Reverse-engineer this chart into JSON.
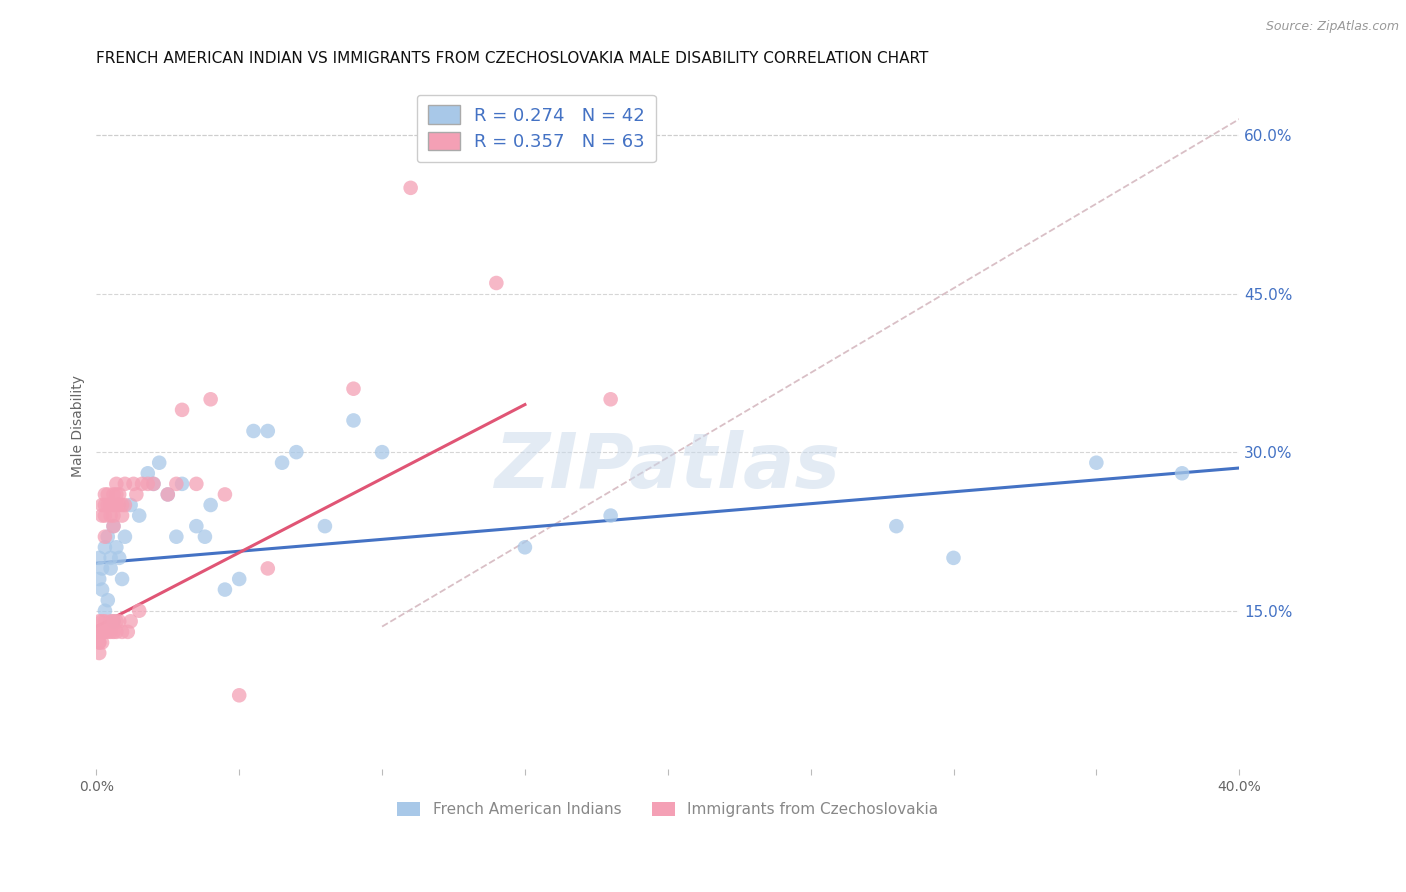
{
  "title": "FRENCH AMERICAN INDIAN VS IMMIGRANTS FROM CZECHOSLOVAKIA MALE DISABILITY CORRELATION CHART",
  "source": "Source: ZipAtlas.com",
  "ylabel": "Male Disability",
  "xlim": [
    0.0,
    0.4
  ],
  "ylim": [
    0.0,
    0.65
  ],
  "xtick_positions": [
    0.0,
    0.05,
    0.1,
    0.15,
    0.2,
    0.25,
    0.3,
    0.35,
    0.4
  ],
  "xticklabels": [
    "0.0%",
    "",
    "",
    "",
    "",
    "",
    "",
    "",
    "40.0%"
  ],
  "yticks_right": [
    0.15,
    0.3,
    0.45,
    0.6
  ],
  "ytick_labels_right": [
    "15.0%",
    "30.0%",
    "45.0%",
    "60.0%"
  ],
  "blue_color": "#a8c8e8",
  "pink_color": "#f4a0b5",
  "blue_line_color": "#4472c4",
  "pink_line_color": "#e05575",
  "dashed_line_color": "#d0b0b8",
  "legend_blue_R": "R = 0.274",
  "legend_blue_N": "N = 42",
  "legend_pink_R": "R = 0.357",
  "legend_pink_N": "N = 63",
  "legend1": "French American Indians",
  "legend2": "Immigrants from Czechoslovakia",
  "watermark": "ZIPatlas",
  "blue_scatter_x": [
    0.001,
    0.001,
    0.002,
    0.002,
    0.003,
    0.003,
    0.004,
    0.004,
    0.005,
    0.005,
    0.006,
    0.006,
    0.007,
    0.008,
    0.009,
    0.01,
    0.012,
    0.015,
    0.018,
    0.02,
    0.022,
    0.025,
    0.028,
    0.03,
    0.035,
    0.038,
    0.04,
    0.045,
    0.05,
    0.055,
    0.06,
    0.065,
    0.07,
    0.08,
    0.09,
    0.1,
    0.15,
    0.18,
    0.28,
    0.3,
    0.35,
    0.38
  ],
  "blue_scatter_y": [
    0.2,
    0.18,
    0.19,
    0.17,
    0.21,
    0.15,
    0.22,
    0.16,
    0.2,
    0.19,
    0.14,
    0.23,
    0.21,
    0.2,
    0.18,
    0.22,
    0.25,
    0.24,
    0.28,
    0.27,
    0.29,
    0.26,
    0.22,
    0.27,
    0.23,
    0.22,
    0.25,
    0.17,
    0.18,
    0.32,
    0.32,
    0.29,
    0.3,
    0.23,
    0.33,
    0.3,
    0.21,
    0.24,
    0.23,
    0.2,
    0.29,
    0.28
  ],
  "pink_scatter_x": [
    0.001,
    0.001,
    0.001,
    0.001,
    0.001,
    0.001,
    0.002,
    0.002,
    0.002,
    0.002,
    0.002,
    0.003,
    0.003,
    0.003,
    0.003,
    0.003,
    0.003,
    0.004,
    0.004,
    0.004,
    0.005,
    0.005,
    0.005,
    0.005,
    0.006,
    0.006,
    0.006,
    0.006,
    0.006,
    0.006,
    0.007,
    0.007,
    0.007,
    0.007,
    0.007,
    0.008,
    0.008,
    0.008,
    0.009,
    0.009,
    0.009,
    0.01,
    0.01,
    0.011,
    0.012,
    0.013,
    0.014,
    0.015,
    0.016,
    0.018,
    0.02,
    0.025,
    0.028,
    0.03,
    0.035,
    0.04,
    0.045,
    0.05,
    0.06,
    0.09,
    0.11,
    0.14,
    0.18
  ],
  "pink_scatter_y": [
    0.13,
    0.14,
    0.12,
    0.11,
    0.13,
    0.12,
    0.25,
    0.24,
    0.13,
    0.14,
    0.12,
    0.26,
    0.24,
    0.25,
    0.13,
    0.14,
    0.22,
    0.25,
    0.26,
    0.13,
    0.24,
    0.14,
    0.25,
    0.13,
    0.25,
    0.24,
    0.26,
    0.13,
    0.14,
    0.23,
    0.26,
    0.27,
    0.25,
    0.13,
    0.14,
    0.26,
    0.25,
    0.14,
    0.13,
    0.25,
    0.24,
    0.25,
    0.27,
    0.13,
    0.14,
    0.27,
    0.26,
    0.15,
    0.27,
    0.27,
    0.27,
    0.26,
    0.27,
    0.34,
    0.27,
    0.35,
    0.26,
    0.07,
    0.19,
    0.36,
    0.55,
    0.46,
    0.35
  ],
  "blue_line_x": [
    0.0,
    0.4
  ],
  "blue_line_y": [
    0.195,
    0.285
  ],
  "pink_line_x": [
    0.0,
    0.15
  ],
  "pink_line_y": [
    0.135,
    0.345
  ],
  "dashed_line_x": [
    0.1,
    0.4
  ],
  "dashed_line_y": [
    0.135,
    0.615
  ],
  "background_color": "#ffffff",
  "grid_color": "#cccccc",
  "title_fontsize": 11,
  "axis_label_fontsize": 10,
  "tick_fontsize": 10,
  "right_tick_color": "#4472c4",
  "source_color": "#999999",
  "ylabel_color": "#666666",
  "title_color": "#111111"
}
